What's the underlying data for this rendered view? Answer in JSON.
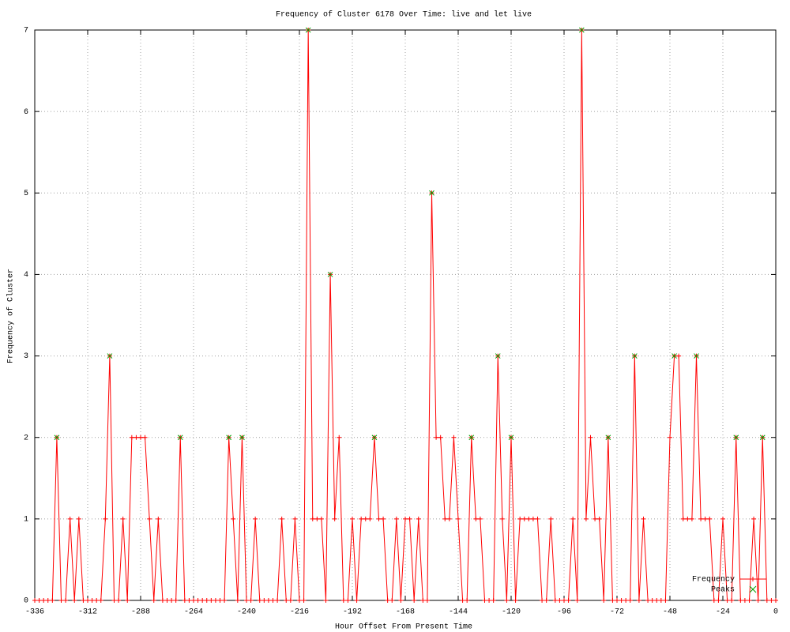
{
  "chart_data": {
    "type": "line",
    "title": "Frequency of Cluster 6178 Over Time: live and let live",
    "x_label": "Hour Offset From Present Time",
    "y_label": "Frequency of Cluster",
    "xlim": [
      -336,
      0
    ],
    "ylim": [
      0,
      7
    ],
    "xticks": [
      -336,
      -312,
      -288,
      -264,
      -240,
      -216,
      -192,
      -168,
      -144,
      -120,
      -96,
      -72,
      -48,
      -24,
      0
    ],
    "yticks": [
      0,
      1,
      2,
      3,
      4,
      5,
      6,
      7
    ],
    "grid": true,
    "legend": "bottom-right",
    "series": [
      {
        "name": "Frequency",
        "color": "#ff0000",
        "style": "linespoints",
        "x": [
          -336,
          -334,
          -332,
          -330,
          -328,
          -326,
          -324,
          -322,
          -320,
          -318,
          -316,
          -314,
          -312,
          -310,
          -308,
          -306,
          -304,
          -302,
          -300,
          -298,
          -296,
          -294,
          -292,
          -290,
          -288,
          -286,
          -284,
          -282,
          -280,
          -278,
          -276,
          -274,
          -272,
          -270,
          -268,
          -266,
          -264,
          -262,
          -260,
          -258,
          -256,
          -254,
          -252,
          -250,
          -248,
          -246,
          -244,
          -242,
          -240,
          -238,
          -236,
          -234,
          -232,
          -230,
          -228,
          -226,
          -224,
          -222,
          -220,
          -218,
          -216,
          -214,
          -212,
          -210,
          -208,
          -206,
          -204,
          -202,
          -200,
          -198,
          -196,
          -194,
          -192,
          -190,
          -188,
          -186,
          -184,
          -182,
          -180,
          -178,
          -176,
          -174,
          -172,
          -170,
          -168,
          -166,
          -164,
          -162,
          -160,
          -158,
          -156,
          -154,
          -152,
          -150,
          -148,
          -146,
          -144,
          -142,
          -140,
          -138,
          -136,
          -134,
          -132,
          -130,
          -128,
          -126,
          -124,
          -122,
          -120,
          -118,
          -116,
          -114,
          -112,
          -110,
          -108,
          -106,
          -104,
          -102,
          -100,
          -98,
          -96,
          -94,
          -92,
          -90,
          -88,
          -86,
          -84,
          -82,
          -80,
          -78,
          -76,
          -74,
          -72,
          -70,
          -68,
          -66,
          -64,
          -62,
          -60,
          -58,
          -56,
          -54,
          -52,
          -50,
          -48,
          -46,
          -44,
          -42,
          -40,
          -38,
          -36,
          -34,
          -32,
          -30,
          -28,
          -26,
          -24,
          -22,
          -20,
          -18,
          -16,
          -14,
          -12,
          -10,
          -8,
          -6,
          -4,
          -2,
          0
        ],
        "values": [
          0,
          0,
          0,
          0,
          0,
          2,
          0,
          0,
          1,
          0,
          1,
          0,
          0,
          0,
          0,
          0,
          1,
          3,
          0,
          0,
          1,
          0,
          2,
          2,
          2,
          2,
          1,
          0,
          1,
          0,
          0,
          0,
          0,
          2,
          0,
          0,
          0,
          0,
          0,
          0,
          0,
          0,
          0,
          0,
          2,
          1,
          0,
          2,
          0,
          0,
          1,
          0,
          0,
          0,
          0,
          0,
          1,
          0,
          0,
          1,
          0,
          0,
          7,
          1,
          1,
          1,
          0,
          4,
          1,
          2,
          0,
          0,
          1,
          0,
          1,
          1,
          1,
          2,
          1,
          1,
          0,
          0,
          1,
          0,
          1,
          1,
          0,
          1,
          0,
          0,
          5,
          2,
          2,
          1,
          1,
          2,
          1,
          0,
          0,
          2,
          1,
          1,
          0,
          0,
          0,
          3,
          1,
          0,
          2,
          0,
          1,
          1,
          1,
          1,
          1,
          0,
          0,
          1,
          0,
          0,
          0,
          0,
          1,
          0,
          7,
          1,
          2,
          1,
          1,
          0,
          2,
          0,
          0,
          0,
          0,
          0,
          3,
          0,
          1,
          0,
          0,
          0,
          0,
          0,
          2,
          3,
          3,
          1,
          1,
          1,
          3,
          1,
          1,
          1,
          0,
          0,
          1,
          0,
          0,
          2,
          0,
          0,
          0,
          1,
          0,
          2,
          0,
          0,
          0
        ]
      },
      {
        "name": "Peaks",
        "color": "#00a000",
        "style": "points",
        "x": [
          -326,
          -302,
          -270,
          -248,
          -242,
          -212,
          -202,
          -182,
          -156,
          -138,
          -126,
          -120,
          -88,
          -76,
          -64,
          -46,
          -36,
          -18,
          -6
        ],
        "values": [
          2,
          3,
          2,
          2,
          2,
          7,
          4,
          2,
          5,
          2,
          3,
          2,
          7,
          2,
          3,
          3,
          3,
          2,
          2
        ]
      }
    ]
  }
}
